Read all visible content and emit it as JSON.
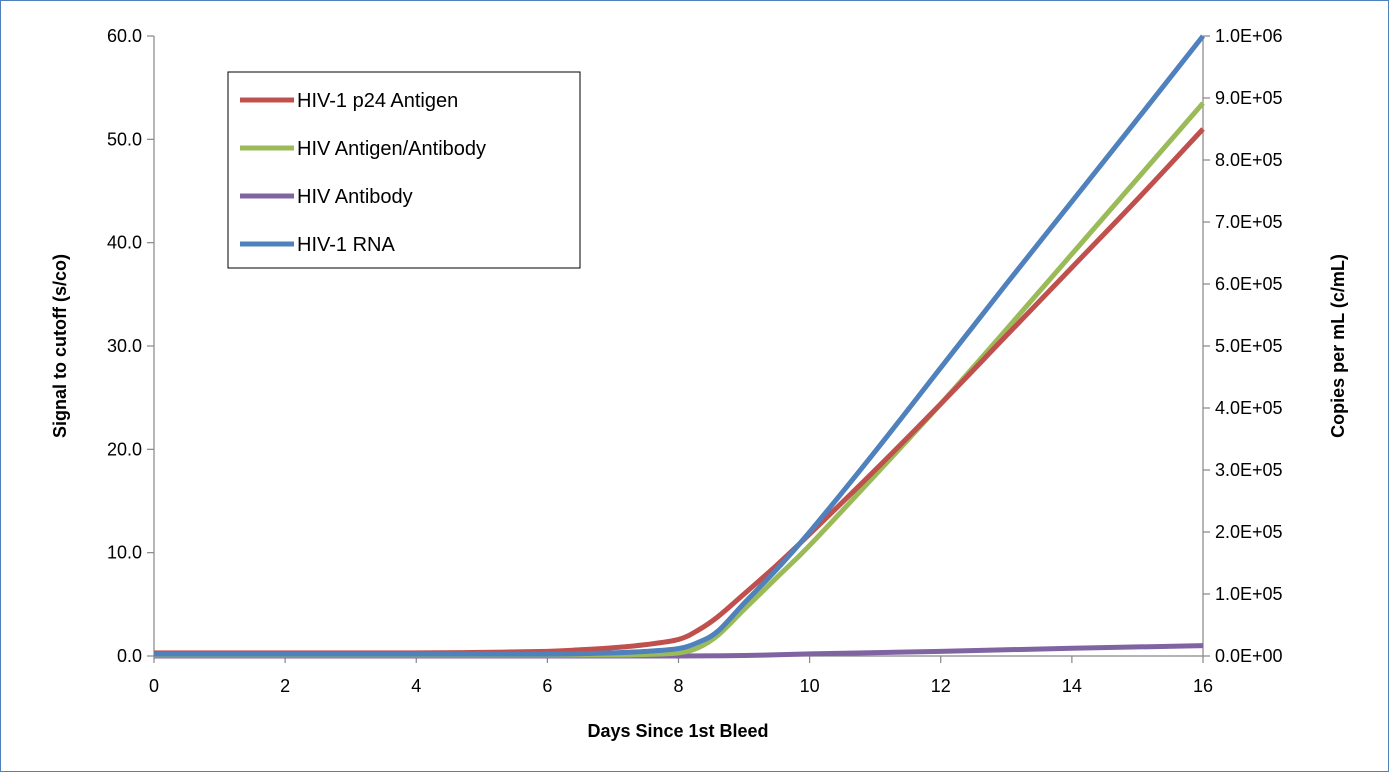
{
  "chart_data": {
    "type": "line",
    "title": "",
    "xlabel": "Days Since 1st Bleed",
    "ylabel_left": "Signal to cutoff (s/co)",
    "ylabel_right": "Copies per mL (c/mL)",
    "xlim": [
      0,
      16
    ],
    "ylim_left": [
      0,
      60
    ],
    "ylim_right": [
      0,
      1000000
    ],
    "x_ticks": [
      "0",
      "2",
      "4",
      "6",
      "8",
      "10",
      "12",
      "14",
      "16"
    ],
    "y_left_ticks": [
      "0.0",
      "10.0",
      "20.0",
      "30.0",
      "40.0",
      "50.0",
      "60.0"
    ],
    "y_right_ticks": [
      "0.0E+00",
      "1.0E+05",
      "2.0E+05",
      "3.0E+05",
      "4.0E+05",
      "5.0E+05",
      "6.0E+05",
      "7.0E+05",
      "8.0E+05",
      "9.0E+05",
      "1.0E+06"
    ],
    "grid": false,
    "legend_position": "top-left",
    "series": [
      {
        "name": "HIV-1 p24 Antigen",
        "color": "#c0504d",
        "axis": "left",
        "x": [
          0,
          2,
          4,
          5,
          6,
          6.5,
          7,
          7.5,
          8,
          8.3,
          8.6,
          9,
          9.5,
          10,
          11,
          12,
          13,
          14,
          15,
          16
        ],
        "y": [
          0.3,
          0.3,
          0.3,
          0.35,
          0.45,
          0.6,
          0.8,
          1.1,
          1.6,
          2.5,
          3.8,
          6.0,
          8.8,
          11.8,
          18.0,
          24.4,
          31.0,
          37.6,
          44.2,
          51.0
        ]
      },
      {
        "name": "HIV Antigen/Antibody",
        "color": "#9bbb59",
        "axis": "left",
        "x": [
          0,
          2,
          4,
          6,
          7,
          7.5,
          8,
          8.3,
          8.6,
          9,
          9.5,
          10,
          11,
          12,
          13,
          14,
          15,
          16
        ],
        "y": [
          0.1,
          0.1,
          0.1,
          0.1,
          0.1,
          0.15,
          0.3,
          0.8,
          2.0,
          4.5,
          7.6,
          10.7,
          17.5,
          24.4,
          31.6,
          38.9,
          46.2,
          53.5
        ]
      },
      {
        "name": "HIV Antibody",
        "color": "#8064a2",
        "axis": "left",
        "x": [
          0,
          2,
          4,
          6,
          8,
          9,
          10,
          12,
          14,
          16
        ],
        "y": [
          0,
          0,
          0,
          0,
          0,
          0.05,
          0.2,
          0.45,
          0.75,
          1.0
        ]
      },
      {
        "name": "HIV-1 RNA",
        "color": "#4f81bd",
        "axis": "right",
        "x": [
          0,
          2,
          4,
          6,
          7,
          7.5,
          8,
          8.3,
          8.6,
          9,
          9.5,
          10,
          11,
          12,
          13,
          14,
          15,
          16
        ],
        "y": [
          3000,
          3000,
          3000,
          3000,
          5000,
          7500,
          12000,
          22000,
          40000,
          85000,
          140000,
          200000,
          330000,
          465000,
          600000,
          733000,
          866000,
          1000000
        ]
      }
    ]
  }
}
